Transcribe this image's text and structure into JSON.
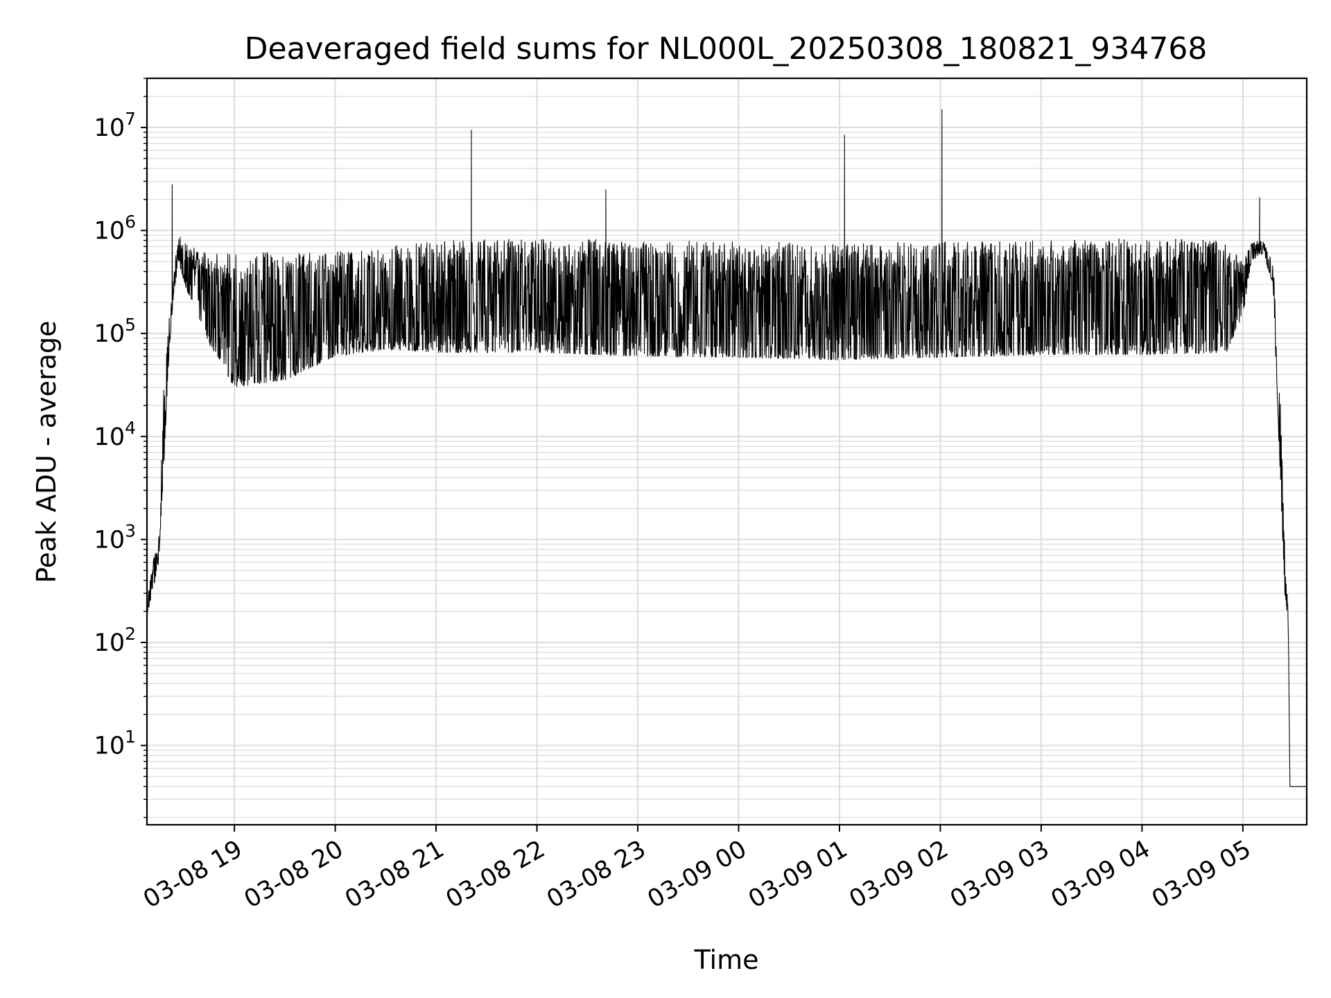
{
  "chart_data": {
    "type": "line",
    "title": "Deaveraged field sums for NL000L_20250308_180821_934768",
    "xlabel": "Time",
    "ylabel": "Peak ADU - average",
    "yscale": "log",
    "ylim": [
      1.7,
      30000000
    ],
    "xlim": [
      "03-08 18:08",
      "03-09 05:38"
    ],
    "grid": true,
    "x_ticks": [
      "03-08 19",
      "03-08 20",
      "03-08 21",
      "03-08 22",
      "03-08 23",
      "03-09 00",
      "03-09 01",
      "03-09 02",
      "03-09 03",
      "03-09 04",
      "03-09 05"
    ],
    "y_ticks": [
      {
        "base": "10",
        "exp": "1",
        "value": 10
      },
      {
        "base": "10",
        "exp": "2",
        "value": 100
      },
      {
        "base": "10",
        "exp": "3",
        "value": 1000
      },
      {
        "base": "10",
        "exp": "4",
        "value": 10000
      },
      {
        "base": "10",
        "exp": "5",
        "value": 100000
      },
      {
        "base": "10",
        "exp": "6",
        "value": 1000000
      },
      {
        "base": "10",
        "exp": "7",
        "value": 10000000
      }
    ],
    "series": [
      {
        "color": "#000000",
        "envelope": [
          {
            "x": "03-08 18:08",
            "high": 250,
            "low": 180
          },
          {
            "x": "03-08 18:12",
            "high": 700,
            "low": 350
          },
          {
            "x": "03-08 18:15",
            "high": 1000,
            "low": 600
          },
          {
            "x": "03-08 18:18",
            "high": 30000,
            "low": 5000
          },
          {
            "x": "03-08 18:21",
            "high": 150000,
            "low": 60000
          },
          {
            "x": "03-08 18:24",
            "high": 450000,
            "low": 250000
          },
          {
            "x": "03-08 18:27",
            "high": 900000,
            "low": 500000
          },
          {
            "x": "03-08 18:30",
            "high": 800000,
            "low": 300000
          },
          {
            "x": "03-08 18:35",
            "high": 700000,
            "low": 200000
          },
          {
            "x": "03-08 18:45",
            "high": 600000,
            "low": 80000
          },
          {
            "x": "03-08 19:00",
            "high": 620000,
            "low": 30000
          },
          {
            "x": "03-08 19:30",
            "high": 620000,
            "low": 35000
          },
          {
            "x": "03-08 20:00",
            "high": 650000,
            "low": 60000
          },
          {
            "x": "03-08 20:30",
            "high": 700000,
            "low": 70000
          },
          {
            "x": "03-08 21:00",
            "high": 800000,
            "low": 65000
          },
          {
            "x": "03-08 22:00",
            "high": 850000,
            "low": 65000
          },
          {
            "x": "03-08 23:00",
            "high": 800000,
            "low": 60000
          },
          {
            "x": "03-09 00:00",
            "high": 800000,
            "low": 58000
          },
          {
            "x": "03-09 01:00",
            "high": 750000,
            "low": 55000
          },
          {
            "x": "03-09 02:00",
            "high": 780000,
            "low": 58000
          },
          {
            "x": "03-09 03:00",
            "high": 800000,
            "low": 62000
          },
          {
            "x": "03-09 04:00",
            "high": 850000,
            "low": 62000
          },
          {
            "x": "03-09 04:50",
            "high": 800000,
            "low": 65000
          },
          {
            "x": "03-09 05:00",
            "high": 500000,
            "low": 150000
          },
          {
            "x": "03-09 05:05",
            "high": 800000,
            "low": 500000
          },
          {
            "x": "03-09 05:12",
            "high": 800000,
            "low": 600000
          },
          {
            "x": "03-09 05:18",
            "high": 500000,
            "low": 300000
          },
          {
            "x": "03-09 05:22",
            "high": 30000,
            "low": 5000
          },
          {
            "x": "03-09 05:25",
            "high": 800,
            "low": 300
          },
          {
            "x": "03-09 05:27",
            "high": 200,
            "low": 150
          },
          {
            "x": "03-09 05:28",
            "high": 4,
            "low": 4
          },
          {
            "x": "03-09 05:38",
            "high": 4,
            "low": 4
          }
        ],
        "spikes": [
          {
            "x": "03-08 18:23",
            "y": 2800000
          },
          {
            "x": "03-08 21:21",
            "y": 9500000
          },
          {
            "x": "03-08 22:41",
            "y": 2500000
          },
          {
            "x": "03-09 01:03",
            "y": 8500000
          },
          {
            "x": "03-09 02:01",
            "y": 15000000
          },
          {
            "x": "03-09 05:10",
            "y": 2100000
          }
        ]
      }
    ]
  }
}
